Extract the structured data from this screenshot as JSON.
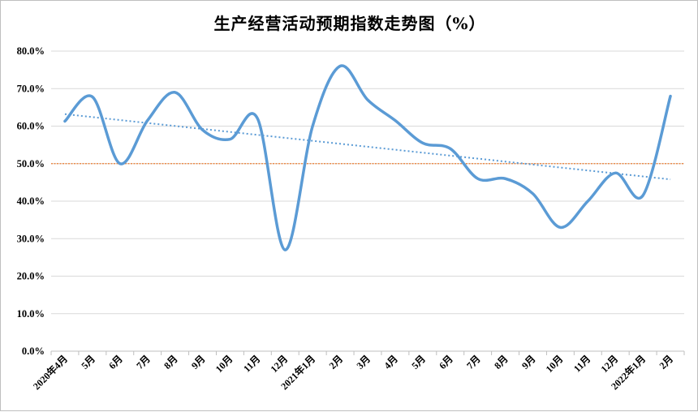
{
  "chart_data": {
    "type": "line",
    "title": "生产经营活动预期指数走势图（%）",
    "xlabel": "",
    "ylabel": "",
    "ylim": [
      0,
      80
    ],
    "grid": true,
    "legend": "none",
    "yticks": [
      "0.0%",
      "10.0%",
      "20.0%",
      "30.0%",
      "40.0%",
      "50.0%",
      "60.0%",
      "70.0%",
      "80.0%"
    ],
    "categories": [
      "2020年4月",
      "5月",
      "6月",
      "7月",
      "8月",
      "9月",
      "10月",
      "11月",
      "12月",
      "2021年1月",
      "2月",
      "3月",
      "4月",
      "5月",
      "6月",
      "7月",
      "8月",
      "9月",
      "10月",
      "11月",
      "12月",
      "2022年1月",
      "2月"
    ],
    "series": [
      {
        "values": [
          61.3,
          67.8,
          50.0,
          61.5,
          69.0,
          59.0,
          56.5,
          62.0,
          27.0,
          60.0,
          76.0,
          67.0,
          61.5,
          55.5,
          54.0,
          46.0,
          46.0,
          42.0,
          33.0,
          40.0,
          47.5,
          41.5,
          68.0
        ],
        "color": "#5b9bd5"
      }
    ],
    "reference_line": {
      "value": 50,
      "color": "#ed7d31"
    },
    "trendline": {
      "start": 63.2,
      "end": 45.8,
      "color": "#5b9bd5"
    }
  }
}
